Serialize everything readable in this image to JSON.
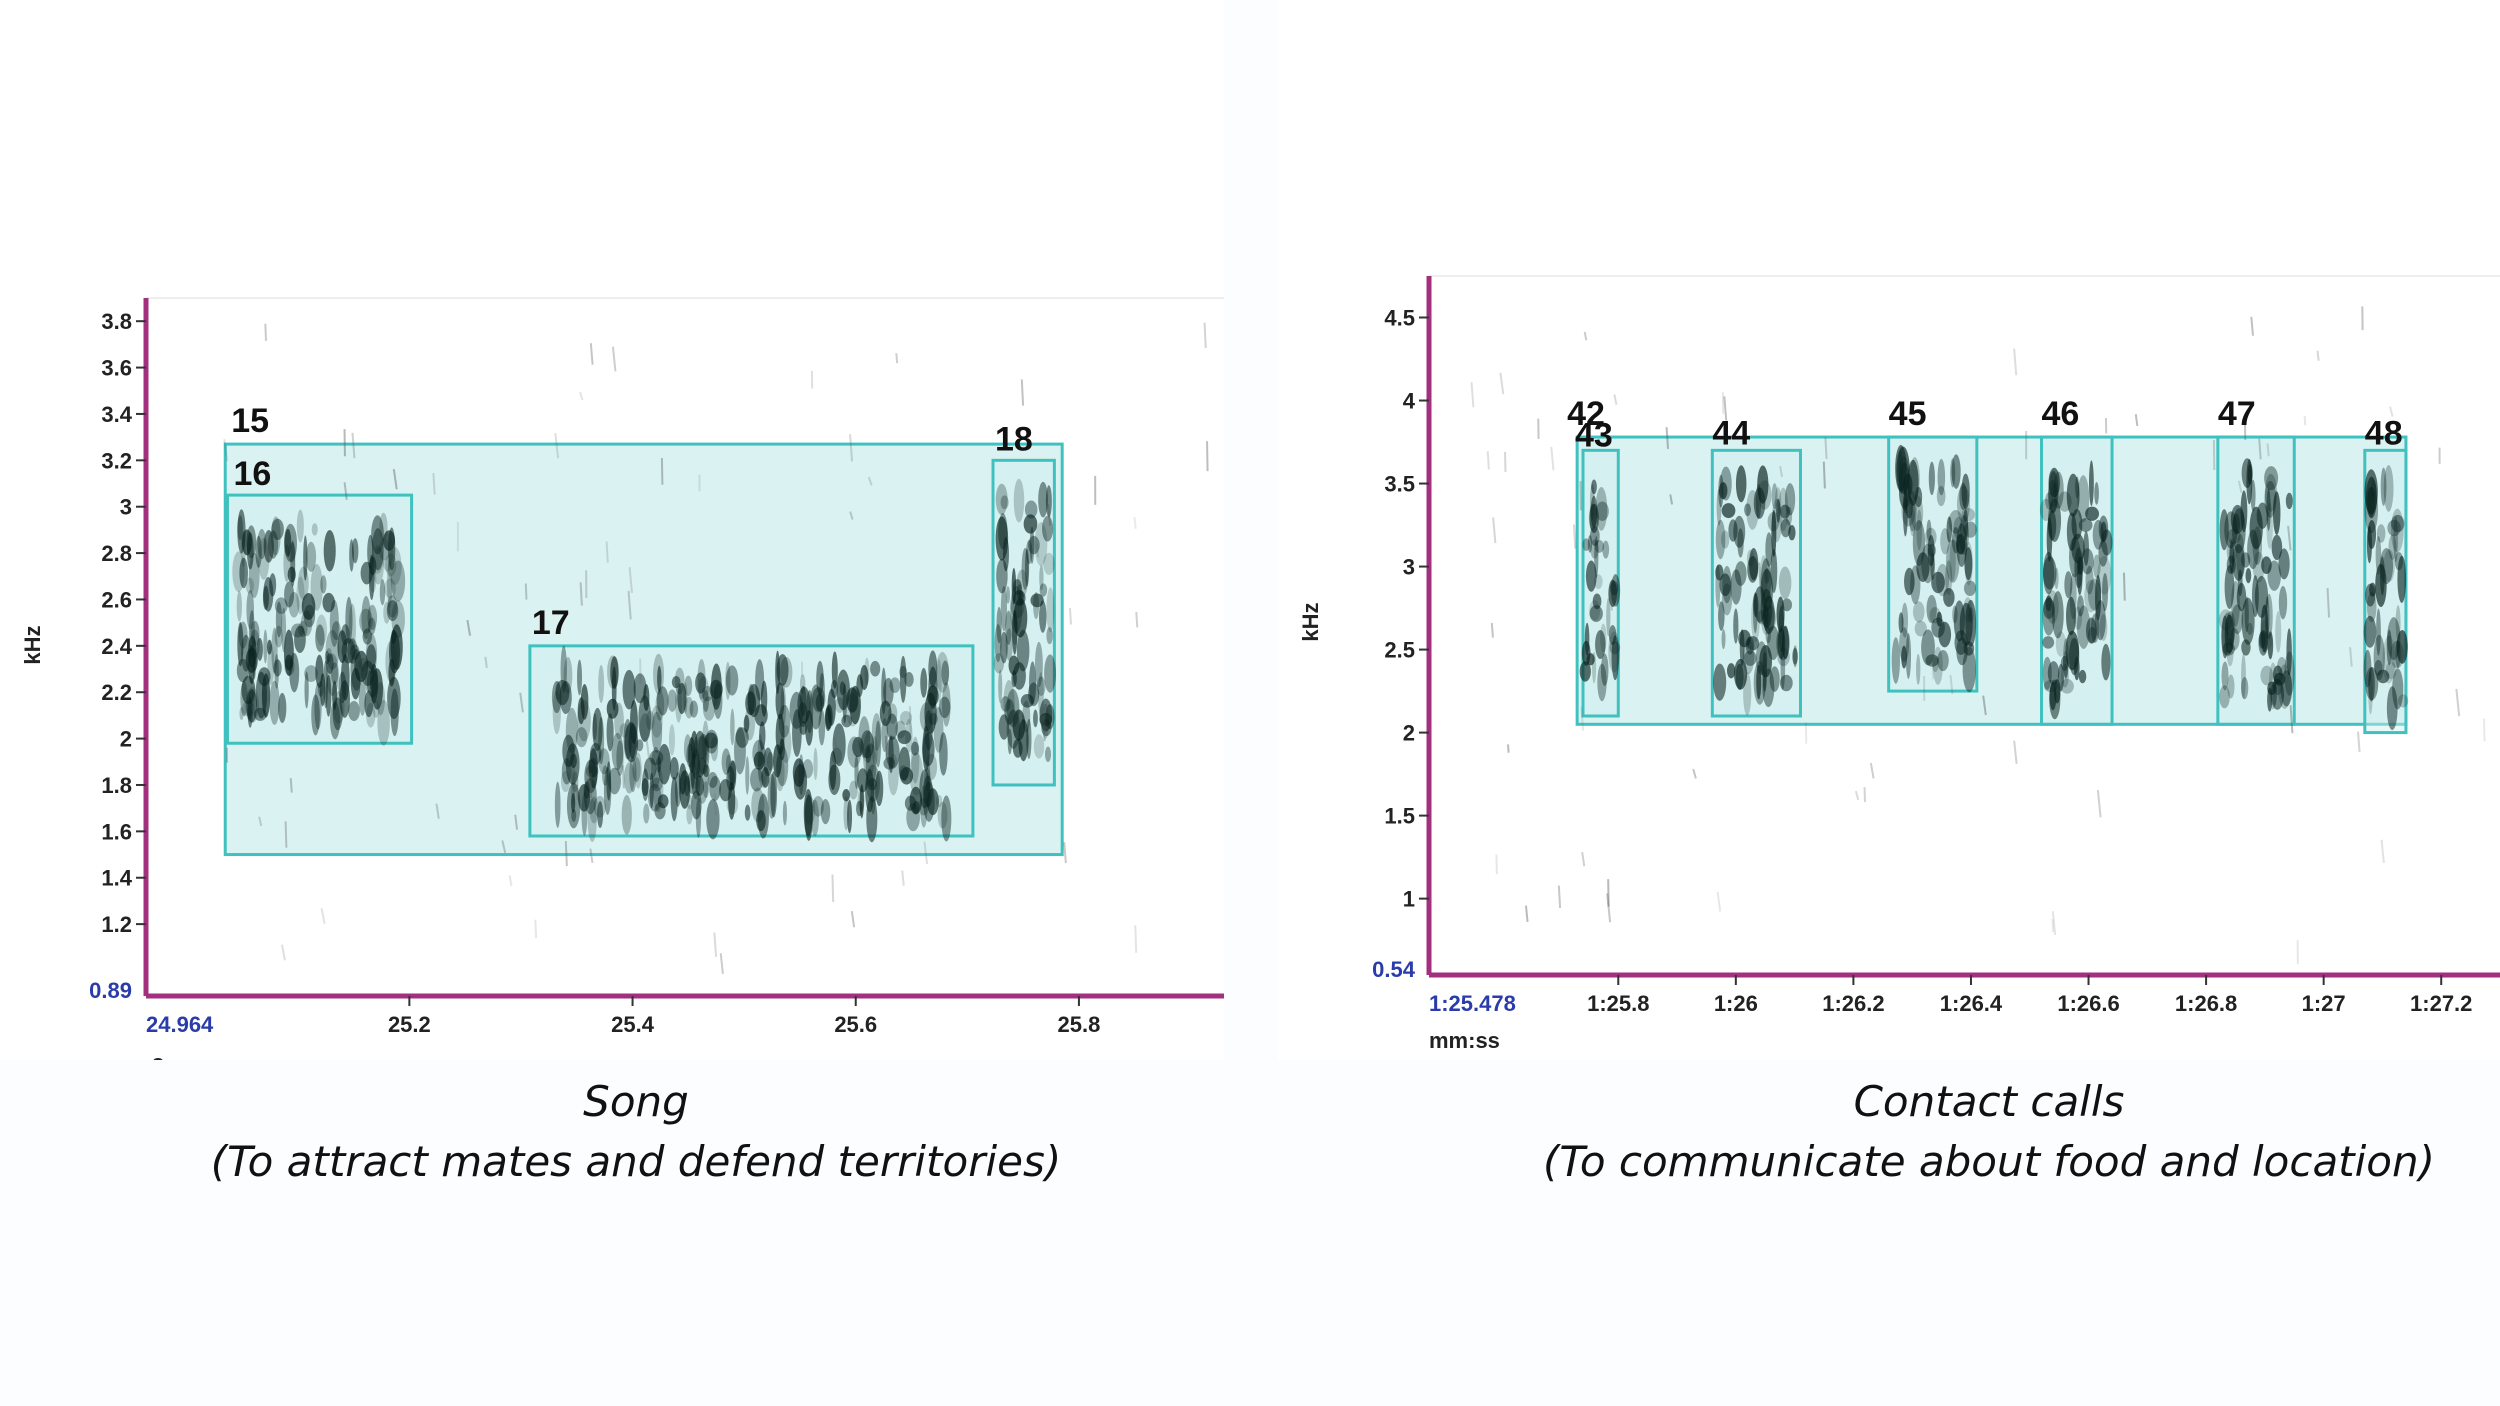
{
  "chart_data": [
    {
      "type": "spectrogram",
      "title": "Song",
      "subtitle": "(To attract mates and defend territories)",
      "ylabel": "kHz",
      "xlabel": "s",
      "xlim": [
        24.964,
        25.93
      ],
      "ylim": [
        0.89,
        3.9
      ],
      "x_start_label": "24.964",
      "y_start_label": "0.89",
      "xticks": [
        "25.2",
        "25.4",
        "25.6",
        "25.8"
      ],
      "yticks": [
        "1.2",
        "1.4",
        "1.6",
        "1.8",
        "2",
        "2.2",
        "2.4",
        "2.6",
        "2.8",
        "3",
        "3.2",
        "3.4",
        "3.6",
        "3.8"
      ],
      "selections": [
        {
          "label": "15",
          "t_start": 25.035,
          "t_end": 25.785,
          "f_low": 1.5,
          "f_high": 3.27
        },
        {
          "label": "16",
          "t_start": 25.037,
          "t_end": 25.202,
          "f_low": 1.98,
          "f_high": 3.05
        },
        {
          "label": "17",
          "t_start": 25.308,
          "t_end": 25.705,
          "f_low": 1.58,
          "f_high": 2.4
        },
        {
          "label": "18",
          "t_start": 25.723,
          "t_end": 25.778,
          "f_low": 1.8,
          "f_high": 3.2
        }
      ]
    },
    {
      "type": "spectrogram",
      "title": "Contact calls",
      "subtitle": "(To communicate about food and location)",
      "ylabel": "kHz",
      "xlabel": "mm:ss",
      "xlim": [
        85.478,
        87.3
      ],
      "ylim": [
        0.54,
        4.75
      ],
      "x_start_label": "1:25.478",
      "y_start_label": "0.54",
      "xticks": [
        "1:25.8",
        "1:26",
        "1:26.2",
        "1:26.4",
        "1:26.6",
        "1:26.8",
        "1:27",
        "1:27.2"
      ],
      "yticks": [
        "1",
        "1.5",
        "2",
        "2.5",
        "3",
        "3.5",
        "4",
        "4.5"
      ],
      "selections": [
        {
          "label": "42",
          "t_start": 85.73,
          "t_end": 87.14,
          "f_low": 2.05,
          "f_high": 3.78
        },
        {
          "label": "43",
          "t_start": 85.74,
          "t_end": 85.8,
          "f_low": 2.1,
          "f_high": 3.7
        },
        {
          "label": "44",
          "t_start": 85.96,
          "t_end": 86.11,
          "f_low": 2.1,
          "f_high": 3.7
        },
        {
          "label": "45",
          "t_start": 86.26,
          "t_end": 86.41,
          "f_low": 2.25,
          "f_high": 3.78
        },
        {
          "label": "46",
          "t_start": 86.52,
          "t_end": 86.64,
          "f_low": 2.05,
          "f_high": 3.78
        },
        {
          "label": "47",
          "t_start": 86.82,
          "t_end": 86.95,
          "f_low": 2.05,
          "f_high": 3.78
        },
        {
          "label": "48",
          "t_start": 87.07,
          "t_end": 87.14,
          "f_low": 2.0,
          "f_high": 3.7
        }
      ]
    }
  ],
  "colors": {
    "selection_fill": "#cfeeee",
    "selection_stroke": "#3fc2bf",
    "axis": "#a2307f",
    "axis_start_label": "#2a3cab",
    "ink": "#0a2320"
  }
}
